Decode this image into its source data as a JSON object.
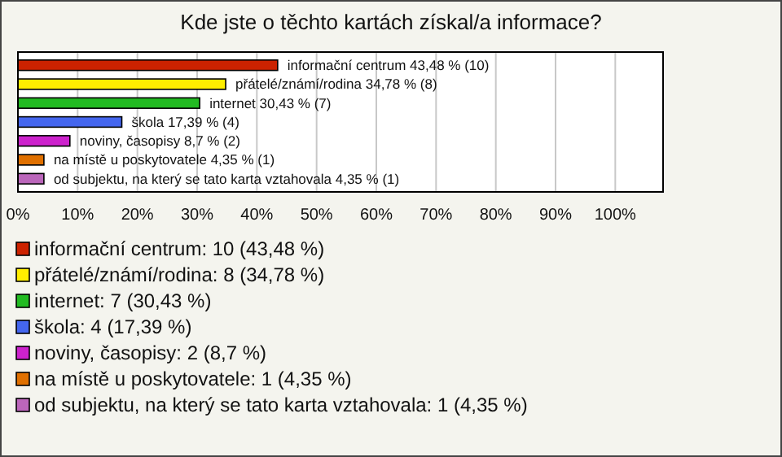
{
  "chart_data": {
    "type": "bar",
    "orientation": "horizontal",
    "stacked": true,
    "title": "Kde jste o těchto kartách získal/a informace?",
    "categories": [
      null,
      null,
      null,
      null,
      null,
      null,
      null
    ],
    "series": [
      {
        "name": "informační centrum: 10 (43,48 %)",
        "color": "#cc2200",
        "values": [
          43.48,
          null,
          null,
          null,
          null,
          null,
          null
        ],
        "value_labels": [
          "informační centrum 43,48 % (10)",
          null,
          null,
          null,
          null,
          null,
          null
        ]
      },
      {
        "name": "přátelé/známí/rodina: 8 (34,78 %)",
        "color": "#ffee00",
        "values": [
          null,
          34.78,
          null,
          null,
          null,
          null,
          null
        ],
        "value_labels": [
          null,
          "přátelé/známí/rodina 34,78 % (8)",
          null,
          null,
          null,
          null,
          null
        ]
      },
      {
        "name": "internet: 7 (30,43 %)",
        "color": "#22bb22",
        "values": [
          null,
          null,
          30.43,
          null,
          null,
          null,
          null
        ],
        "value_labels": [
          null,
          null,
          "internet 30,43 % (7)",
          null,
          null,
          null,
          null
        ]
      },
      {
        "name": "škola: 4 (17,39 %)",
        "color": "#4466ee",
        "values": [
          null,
          null,
          null,
          17.39,
          null,
          null,
          null
        ],
        "value_labels": [
          null,
          null,
          null,
          "škola 17,39 % (4)",
          null,
          null,
          null
        ]
      },
      {
        "name": "noviny, časopisy: 2 (8,7 %)",
        "color": "#cc22cc",
        "values": [
          null,
          null,
          null,
          null,
          8.7,
          null,
          null
        ],
        "value_labels": [
          null,
          null,
          null,
          null,
          "noviny, časopisy 8,7 % (2)",
          null,
          null
        ]
      },
      {
        "name": "na místě u poskytovatele: 1 (4,35 %)",
        "color": "#e07000",
        "values": [
          null,
          null,
          null,
          null,
          null,
          4.35,
          null
        ],
        "value_labels": [
          null,
          null,
          null,
          null,
          null,
          "na místě u poskytovatele 4,35 % (1)",
          null
        ]
      },
      {
        "name": "od subjektu, na který se tato karta vztahovala: 1 (4,35 %)",
        "color": "#bb66bb",
        "values": [
          null,
          null,
          null,
          null,
          null,
          null,
          4.35
        ],
        "value_labels": [
          null,
          null,
          null,
          null,
          null,
          null,
          "od subjektu, na který se tato karta vztahovala 4,35 % (1)"
        ]
      }
    ],
    "xlim": [
      0,
      108
    ],
    "xticks": [
      {
        "value": 0,
        "label": "0%"
      },
      {
        "value": 10,
        "label": "10%"
      },
      {
        "value": 20,
        "label": "20%"
      },
      {
        "value": 30,
        "label": "30%"
      },
      {
        "value": 40,
        "label": "40%"
      },
      {
        "value": 50,
        "label": "50%"
      },
      {
        "value": 60,
        "label": "60%"
      },
      {
        "value": 70,
        "label": "70%"
      },
      {
        "value": 80,
        "label": "80%"
      },
      {
        "value": 90,
        "label": "90%"
      },
      {
        "value": 100,
        "label": "100%"
      }
    ],
    "grid": "x",
    "legend": "bottom",
    "tick_labels": "x"
  }
}
